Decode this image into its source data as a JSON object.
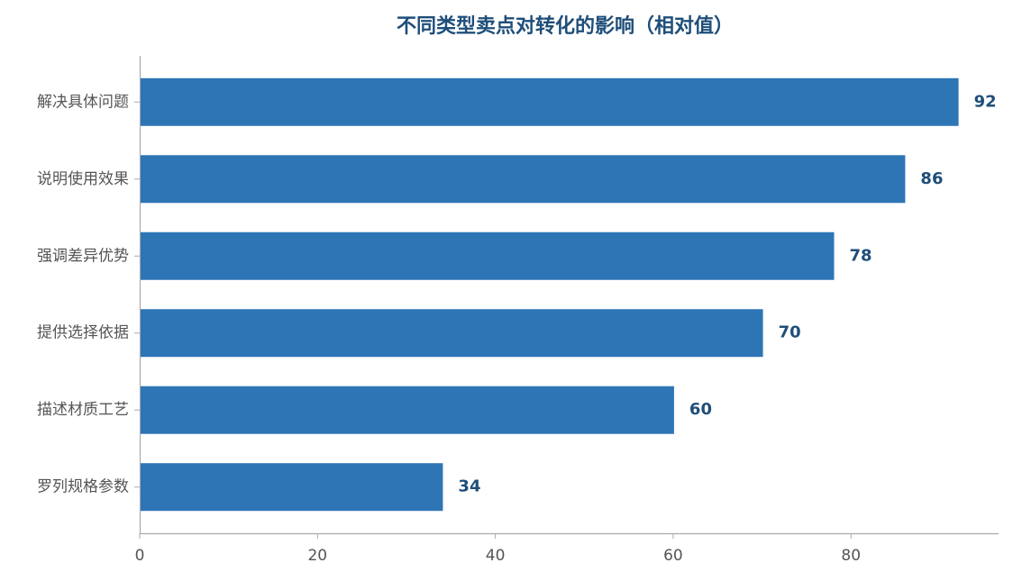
{
  "chart_data": {
    "type": "barh",
    "title": "不同类型卖点对转化的影响（相对值）",
    "categories": [
      "解决具体问题",
      "说明使用效果",
      "强调差异优势",
      "提供选择依据",
      "描述材质工艺",
      "罗列规格参数"
    ],
    "values": [
      92,
      86,
      78,
      70,
      60,
      34
    ],
    "color": "#2e75b6",
    "xlim": [
      0,
      96.6
    ],
    "xticks": [
      0,
      20,
      40,
      60,
      80
    ],
    "grid": false
  }
}
